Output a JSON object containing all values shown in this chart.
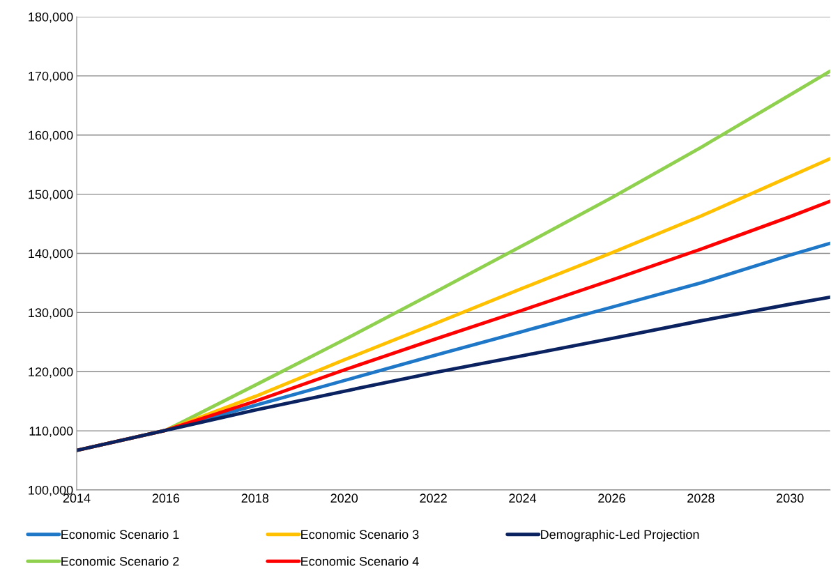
{
  "chart_data": {
    "type": "line",
    "x": [
      2014,
      2016,
      2018,
      2020,
      2022,
      2024,
      2026,
      2028,
      2030,
      2030.9
    ],
    "series": [
      {
        "name": "Economic Scenario 1",
        "color": "#1f77c8",
        "values": [
          106700,
          110100,
          114300,
          118500,
          122700,
          126800,
          130900,
          135000,
          139700,
          141700
        ]
      },
      {
        "name": "Economic Scenario 2",
        "color": "#8fd14f",
        "values": [
          106700,
          110100,
          117700,
          125400,
          133300,
          141300,
          149400,
          157900,
          166800,
          170800
        ]
      },
      {
        "name": "Economic Scenario 3",
        "color": "#ffc000",
        "values": [
          106700,
          110100,
          115800,
          122000,
          128000,
          134100,
          140100,
          146300,
          153000,
          156000
        ]
      },
      {
        "name": "Economic Scenario 4",
        "color": "#ff0000",
        "values": [
          106700,
          110100,
          115000,
          120300,
          125400,
          130400,
          135500,
          140700,
          146200,
          148800
        ]
      },
      {
        "name": "Demographic-Led Projection",
        "color": "#0a2260",
        "values": [
          106700,
          110100,
          113500,
          116700,
          119800,
          122700,
          125600,
          128600,
          131400,
          132600
        ]
      }
    ],
    "xlim": [
      2014,
      2030.9
    ],
    "xticks": [
      2014,
      2016,
      2018,
      2020,
      2022,
      2024,
      2026,
      2028,
      2030
    ],
    "ylim": [
      100000,
      180000
    ],
    "yticks": [
      {
        "value": 100000,
        "label": "100,000"
      },
      {
        "value": 110000,
        "label": "110,000"
      },
      {
        "value": 120000,
        "label": "120,000"
      },
      {
        "value": 130000,
        "label": "130,000"
      },
      {
        "value": 140000,
        "label": "140,000"
      },
      {
        "value": 150000,
        "label": "150,000"
      },
      {
        "value": 160000,
        "label": "160,000"
      },
      {
        "value": 170000,
        "label": "170,000"
      },
      {
        "value": 180000,
        "label": "180,000"
      }
    ],
    "grid": "y",
    "legend": "bottom",
    "marker": "none",
    "line_style": "solid"
  }
}
